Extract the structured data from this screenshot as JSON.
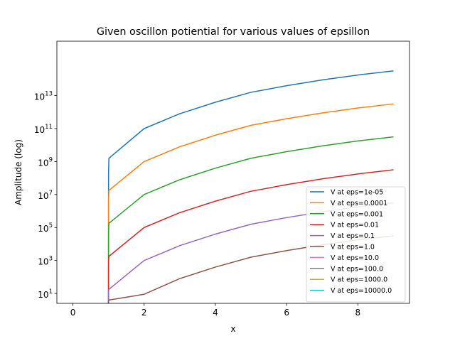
{
  "chart_data": {
    "type": "line",
    "title": "Given oscillon potiential for various values of epsillon",
    "xlabel": "x",
    "ylabel": "Amplitude (log)",
    "xlim": [
      -0.45,
      9.45
    ],
    "ylim_log10": [
      0.4,
      16.3
    ],
    "yscale": "log",
    "grid": false,
    "legend_position": "lower-right",
    "x_ticks": [
      0,
      2,
      4,
      6,
      8
    ],
    "x_tick_labels": [
      "0",
      "2",
      "4",
      "6",
      "8"
    ],
    "y_ticks_exponent": [
      1,
      3,
      5,
      7,
      9,
      11,
      13
    ],
    "y_tick_labels": [
      "10",
      "10",
      "10",
      "10",
      "10",
      "10",
      "10"
    ],
    "y_tick_exponent_labels": [
      "1",
      "3",
      "5",
      "7",
      "9",
      "11",
      "13"
    ],
    "x": [
      1,
      1.000001,
      1.00001,
      1.0001,
      1.001,
      1.01,
      2,
      3,
      4,
      5,
      6,
      7,
      8,
      9
    ],
    "series": [
      {
        "name": "V at eps=1e-05",
        "color": "#1f77b4",
        "log10_values": [
          0.4,
          2.0,
          4.5,
          6.8,
          8.3,
          9.2,
          11.0,
          11.9,
          12.6,
          13.2,
          13.6,
          13.95,
          14.25,
          14.5
        ]
      },
      {
        "name": "V at eps=0.0001",
        "color": "#ff7f0e",
        "log10_values": [
          0.4,
          1.5,
          3.5,
          5.3,
          6.6,
          7.25,
          9.0,
          9.9,
          10.6,
          11.2,
          11.6,
          11.95,
          12.25,
          12.5
        ]
      },
      {
        "name": "V at eps=0.001",
        "color": "#2ca02c",
        "log10_values": [
          0.4,
          1.2,
          2.6,
          3.8,
          4.6,
          5.25,
          7.0,
          7.9,
          8.6,
          9.2,
          9.6,
          9.95,
          10.25,
          10.5
        ]
      },
      {
        "name": "V at eps=0.01",
        "color": "#d62728",
        "log10_values": [
          0.4,
          0.9,
          1.6,
          2.4,
          2.9,
          3.25,
          5.0,
          5.9,
          6.6,
          7.2,
          7.6,
          7.95,
          8.25,
          8.5
        ]
      },
      {
        "name": "V at eps=0.1",
        "color": "#9467bd",
        "log10_values": [
          0.4,
          0.6,
          0.8,
          1.0,
          1.15,
          1.25,
          3.0,
          3.9,
          4.6,
          5.2,
          5.6,
          5.95,
          6.25,
          6.5
        ]
      },
      {
        "name": "V at eps=1.0",
        "color": "#8c564b",
        "log10_values": [
          0.4,
          0.45,
          0.5,
          0.52,
          0.55,
          0.6,
          0.95,
          1.9,
          2.6,
          3.2,
          3.6,
          3.95,
          4.25,
          4.5
        ]
      },
      {
        "name": "V at eps=10.0",
        "color": "#e377c2",
        "log10_values": []
      },
      {
        "name": "V at eps=100.0",
        "color": "#7f7f7f",
        "log10_values": []
      },
      {
        "name": "V at eps=1000.0",
        "color": "#bcbd22",
        "log10_values": []
      },
      {
        "name": "V at eps=10000.0",
        "color": "#17becf",
        "log10_values": []
      }
    ]
  }
}
